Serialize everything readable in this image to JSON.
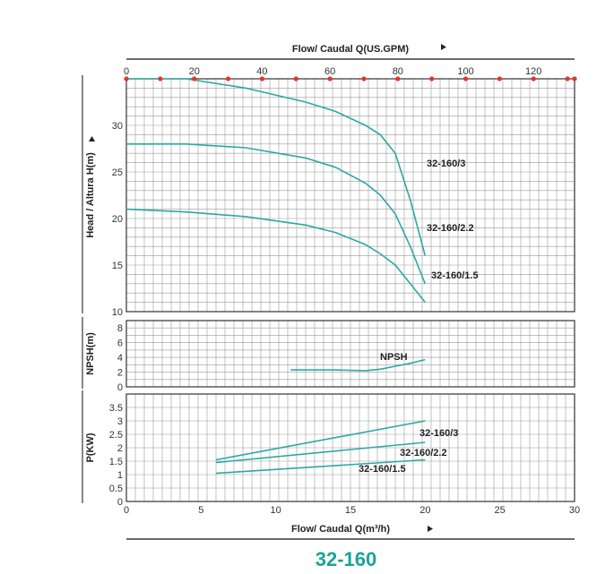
{
  "title": "32-160",
  "top_axis_label": "Flow/ Caudal Q(US.GPM)",
  "bottom_axis_label": "Flow/ Caudal Q(m³/h)",
  "colors": {
    "curve": "#29a9a3",
    "grid": "#9a9a9a",
    "marker": "#e8322e",
    "title": "#1aa39a"
  },
  "chart_data": [
    {
      "type": "line",
      "name": "head",
      "ylabel": "Head / Altura H(m)",
      "xlim": [
        0,
        30
      ],
      "ylim": [
        10,
        35
      ],
      "yticks": [
        10,
        15,
        20,
        25,
        30
      ],
      "top_axis": {
        "label": "Flow/ Caudal Q(US.GPM)",
        "ticks": [
          0,
          20,
          40,
          60,
          80,
          100,
          120
        ],
        "marker_step": 10
      },
      "series": [
        {
          "name": "32-160/3",
          "x": [
            0,
            4,
            8,
            12,
            14,
            16,
            17,
            18,
            19,
            20
          ],
          "y": [
            35,
            35,
            34,
            32.5,
            31.5,
            30,
            29,
            27,
            22,
            16
          ]
        },
        {
          "name": "32-160/2.2",
          "x": [
            0,
            4,
            8,
            12,
            14,
            16,
            17,
            18,
            19,
            20
          ],
          "y": [
            28,
            28,
            27.6,
            26.5,
            25.5,
            23.8,
            22.5,
            20.5,
            17,
            13
          ]
        },
        {
          "name": "32-160/1.5",
          "x": [
            0,
            4,
            8,
            12,
            14,
            16,
            17,
            18,
            19,
            20
          ],
          "y": [
            21,
            20.7,
            20.2,
            19.3,
            18.5,
            17.2,
            16.2,
            15,
            13,
            11
          ]
        }
      ]
    },
    {
      "type": "line",
      "name": "npsh",
      "ylabel": "NPSH(m)",
      "xlim": [
        0,
        30
      ],
      "ylim": [
        0,
        9
      ],
      "yticks": [
        0,
        2,
        4,
        6,
        8
      ],
      "series": [
        {
          "name": "NPSH",
          "x": [
            11,
            14,
            16,
            17,
            18,
            19,
            20
          ],
          "y": [
            2.3,
            2.3,
            2.2,
            2.4,
            2.8,
            3.2,
            3.7
          ]
        }
      ]
    },
    {
      "type": "line",
      "name": "power",
      "ylabel": "P(KW)",
      "xlim": [
        0,
        30
      ],
      "ylim": [
        0,
        4
      ],
      "xlabel": "Flow/ Caudal Q(m³/h)",
      "xticks": [
        0,
        5,
        10,
        15,
        20,
        25,
        30
      ],
      "yticks": [
        0,
        0.5,
        1,
        1.5,
        2,
        2.5,
        3,
        3.5
      ],
      "series": [
        {
          "name": "32-160/3",
          "x": [
            6,
            20
          ],
          "y": [
            1.55,
            3.0
          ]
        },
        {
          "name": "32-160/2.2",
          "x": [
            6,
            20
          ],
          "y": [
            1.45,
            2.2
          ]
        },
        {
          "name": "32-160/1.5",
          "x": [
            6,
            20
          ],
          "y": [
            1.05,
            1.55
          ]
        }
      ]
    }
  ]
}
